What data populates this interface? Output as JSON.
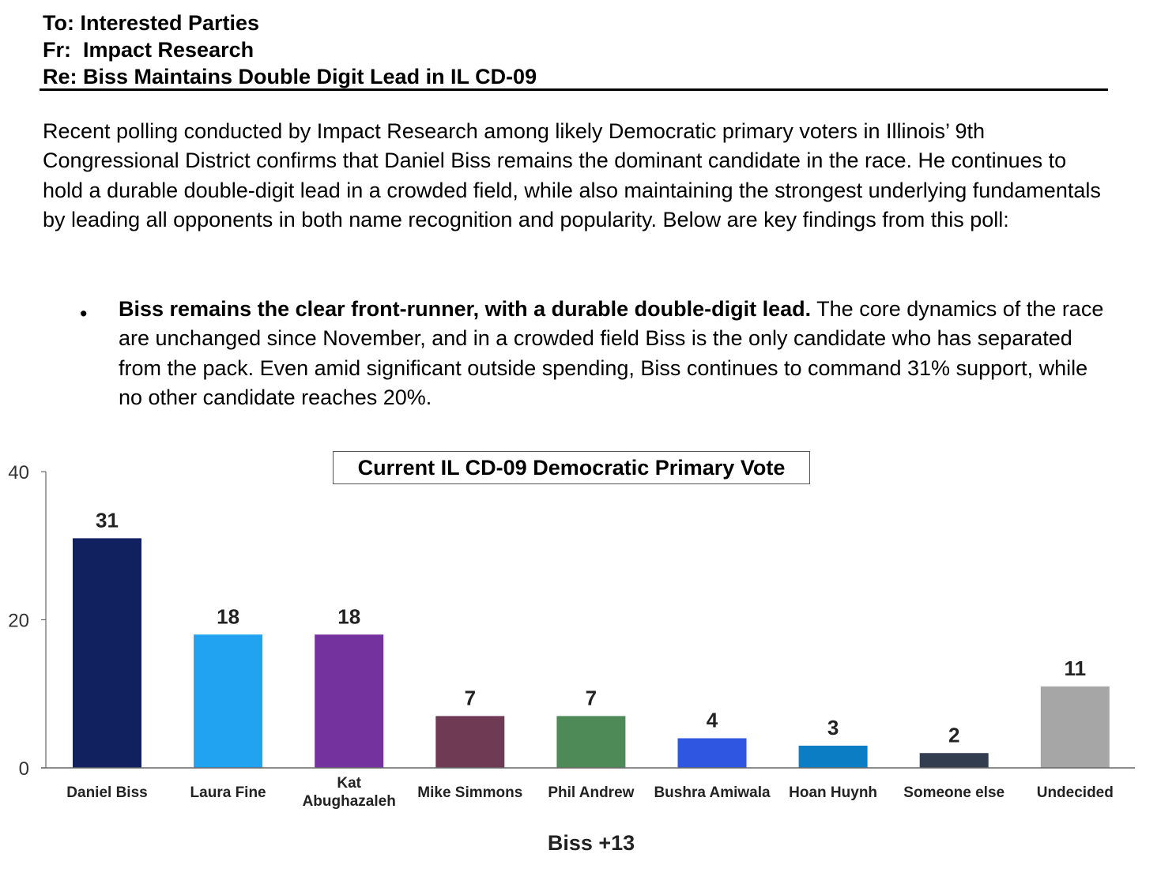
{
  "memo": {
    "to": "To: Interested Parties",
    "from": "Fr:  Impact Research",
    "re": "Re: Biss Maintains Double Digit Lead in IL CD-09"
  },
  "intro": "Recent polling conducted by Impact Research among likely Democratic primary voters in Illinois’ 9th Congressional District confirms that Daniel Biss remains the dominant candidate in the race. He continues to hold a durable double-digit lead in a crowded field, while also maintaining the strongest underlying fundamentals by leading all opponents in both name recognition and popularity. Below are key findings from this poll:",
  "bullets": [
    {
      "bold": "Biss remains the clear front-runner, with a durable double-digit lead.",
      "text": " The core dynamics of the race are unchanged since November, and in a crowded field Biss is the only candidate who has separated from the pack. Even amid significant outside spending, Biss continues to command 31% support, while no other candidate reaches 20%."
    }
  ],
  "chart_data": {
    "type": "bar",
    "title": "Current IL CD-09 Democratic Primary Vote",
    "categories": [
      "Daniel Biss",
      "Laura Fine",
      "Kat Abughazaleh",
      "Mike Simmons",
      "Phil Andrew",
      "Bushra Amiwala",
      "Hoan Huynh",
      "Someone else",
      "Undecided"
    ],
    "category_lines": [
      [
        "Daniel Biss"
      ],
      [
        "Laura Fine"
      ],
      [
        "Kat",
        "Abughazaleh"
      ],
      [
        "Mike Simmons"
      ],
      [
        "Phil Andrew"
      ],
      [
        "Bushra Amiwala"
      ],
      [
        "Hoan Huynh"
      ],
      [
        "Someone else"
      ],
      [
        "Undecided"
      ]
    ],
    "values": [
      31,
      18,
      18,
      7,
      7,
      4,
      3,
      2,
      11
    ],
    "colors": [
      "#11205f",
      "#21a3f2",
      "#73329e",
      "#6f3a54",
      "#4e8a57",
      "#2e56e0",
      "#0b7dc5",
      "#323d50",
      "#a6a6a6"
    ],
    "ylim": [
      0,
      40
    ],
    "yticks": [
      "0",
      "20",
      "40"
    ],
    "grid": false,
    "xlabel": "",
    "ylabel": "",
    "footer": "Biss +13"
  }
}
